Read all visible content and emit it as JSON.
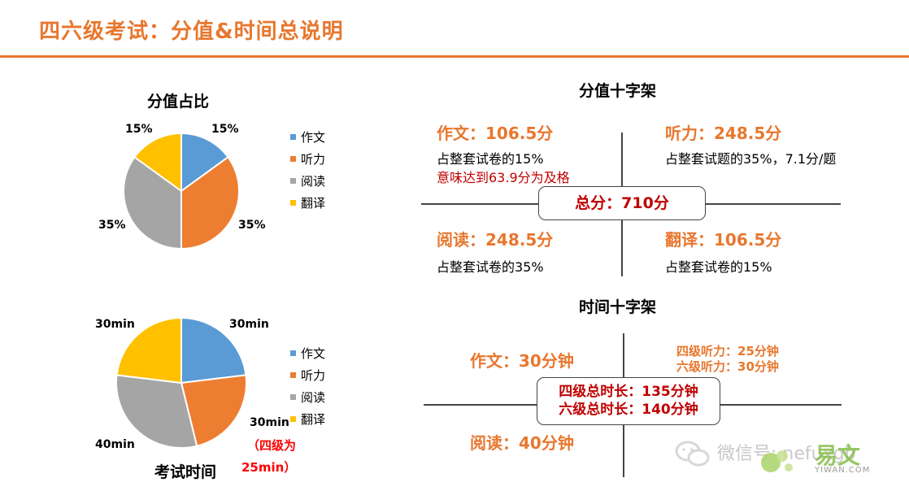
{
  "page": {
    "title": "四六级考试：分值&时间总说明"
  },
  "colors": {
    "accent": "#e8772e",
    "red": "#c00000",
    "blue": "#5b9bd5",
    "orange": "#ed7d31",
    "gray": "#a5a5a5",
    "yellow": "#ffc000"
  },
  "chart_data": [
    {
      "type": "pie",
      "title": "分值占比",
      "categories": [
        "作文",
        "听力",
        "阅读",
        "翻译"
      ],
      "values": [
        15,
        35,
        35,
        15
      ],
      "data_labels": [
        "15%",
        "35%",
        "35%",
        "15%"
      ],
      "legend": "right"
    },
    {
      "type": "pie",
      "title": "考试时间",
      "categories": [
        "作文",
        "听力",
        "阅读",
        "翻译"
      ],
      "values": [
        30,
        30,
        40,
        30
      ],
      "data_labels": [
        "30min",
        "30min",
        "40min",
        "30min"
      ],
      "legend": "right",
      "annotation": "（四级为 25min）",
      "annotation_lines": [
        "（四级为",
        "25min）"
      ]
    }
  ],
  "score_cross": {
    "title": "分值十字架",
    "center": "总分：710分",
    "q1": {
      "head": "作文：106.5分",
      "line1": "占整套试卷的15%",
      "line2": "意味达到63.9分为及格"
    },
    "q2": {
      "head": "听力：248.5分",
      "line1": "占整套试题的35%，7.1分/题"
    },
    "q3": {
      "head": "阅读：248.5分",
      "line1": "占整套试卷的35%"
    },
    "q4": {
      "head": "翻译：106.5分",
      "line1": "占整套试卷的15%"
    }
  },
  "time_cross": {
    "title": "时间十字架",
    "center_line1": "四级总时长：135分钟",
    "center_line2": "六级总时长：140分钟",
    "q1": {
      "head": "作文：30分钟"
    },
    "q2": {
      "line1": "四级听力：25分钟",
      "line2": "六级听力：30分钟"
    },
    "q3": {
      "head": "阅读：40分钟"
    }
  },
  "watermark": {
    "text": "微信号: nefuxgb",
    "logo": "易文",
    "site": "YIWAN.COM"
  }
}
